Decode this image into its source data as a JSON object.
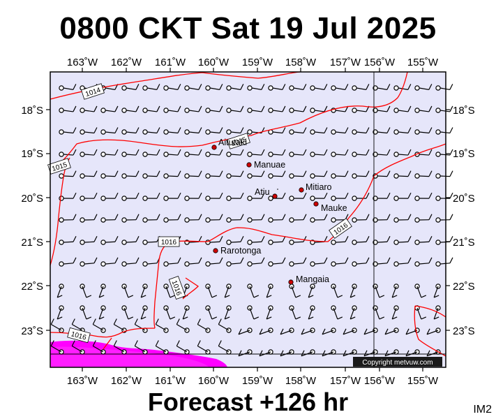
{
  "title": "0800 CKT Sat 19 Jul 2025",
  "forecast_label": "Forecast +126 hr",
  "product_code": "IM2",
  "copyright": "Copyright metvuw.com",
  "lon_labels": [
    "163˚W",
    "162˚W",
    "161˚W",
    "160˚W",
    "159˚W",
    "158˚W",
    "157˚W",
    "156˚W",
    "155˚W"
  ],
  "lat_labels": [
    "18˚S",
    "19˚S",
    "20˚S",
    "21˚S",
    "22˚S",
    "23˚S"
  ],
  "places": [
    "Aitutaki",
    "Manuae",
    "Atiu",
    "Mitiaro",
    "Mauke",
    "Rarotonga",
    "Mangaia"
  ],
  "isobars": [
    "1014",
    "1015",
    "1015",
    "1016",
    "1016",
    "1016",
    "1016"
  ],
  "colors": {
    "map_background": "#e6e6fa",
    "isobar": "#ff0000",
    "heavy_rain": "#ff00ff",
    "island": "#cc0000"
  }
}
